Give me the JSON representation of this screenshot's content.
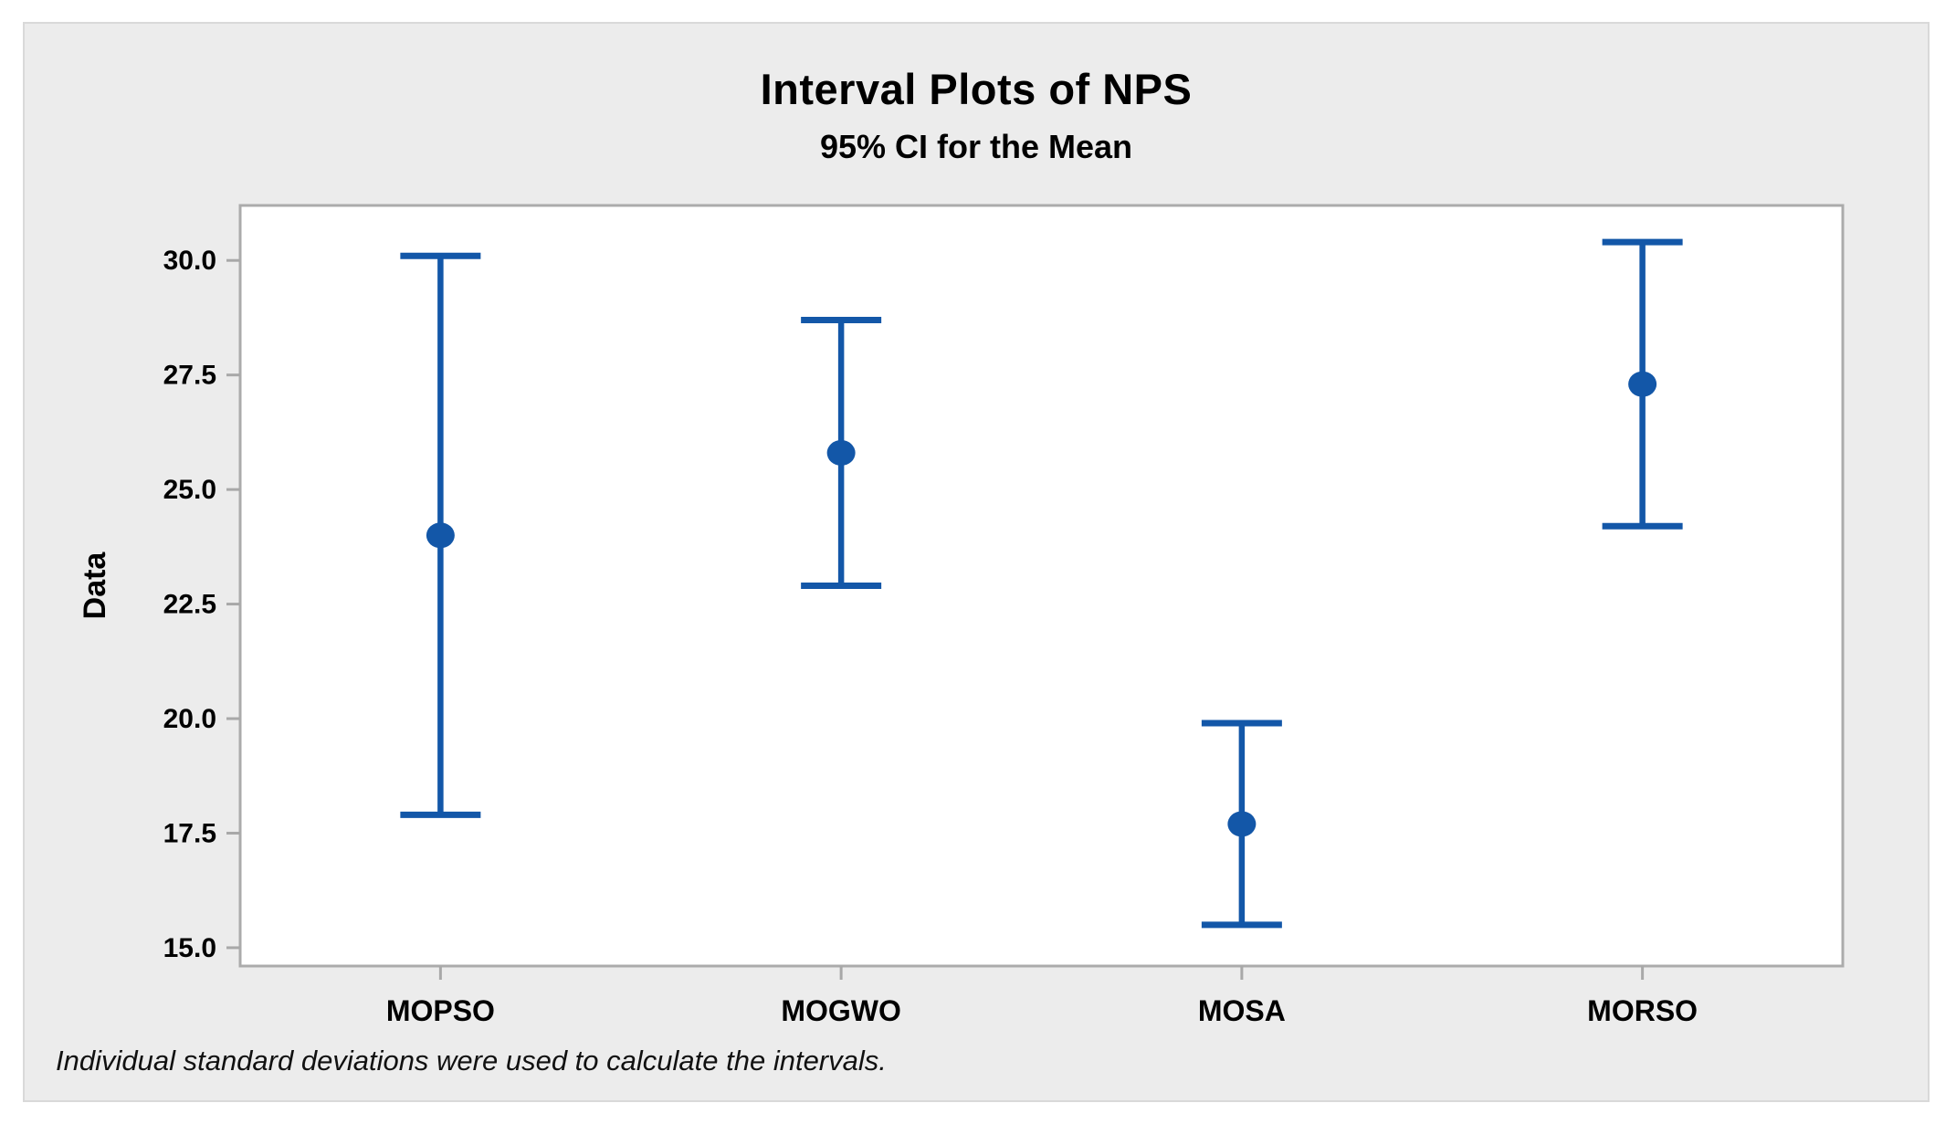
{
  "window": {
    "background": "#ffffff"
  },
  "panel": {
    "background": "#ececec",
    "border_color": "#d9d9d9"
  },
  "chart_data": {
    "type": "scatter",
    "subtype": "interval-plot-with-95ci-error-bars",
    "title": "Interval Plots of NPS",
    "subtitle": "95% CI for the Mean",
    "xlabel": "",
    "ylabel": "Data",
    "categories": [
      "MOPSO",
      "MOGWO",
      "MOSA",
      "MORSO"
    ],
    "series": [
      {
        "name": "MOPSO",
        "mean": 24.0,
        "ci_lower": 17.9,
        "ci_upper": 30.1
      },
      {
        "name": "MOGWO",
        "mean": 25.8,
        "ci_lower": 22.9,
        "ci_upper": 28.7
      },
      {
        "name": "MOSA",
        "mean": 17.7,
        "ci_lower": 15.5,
        "ci_upper": 19.9
      },
      {
        "name": "MORSO",
        "mean": 27.3,
        "ci_lower": 24.2,
        "ci_upper": 30.4
      }
    ],
    "yticks": [
      15.0,
      17.5,
      20.0,
      22.5,
      25.0,
      27.5,
      30.0
    ],
    "ytick_labels": [
      "15.0",
      "17.5",
      "20.0",
      "22.5",
      "25.0",
      "27.5",
      "30.0"
    ],
    "ylim": [
      14.6,
      31.2
    ],
    "grid": false,
    "legend": null,
    "footnote": "Individual standard deviations were used to calculate the intervals.",
    "colors": {
      "interval_blue": "#1357a8",
      "plot_border": "#ababab",
      "tick_mark": "#a8a8a8",
      "plot_background": "#ffffff",
      "text": "#000000"
    }
  }
}
